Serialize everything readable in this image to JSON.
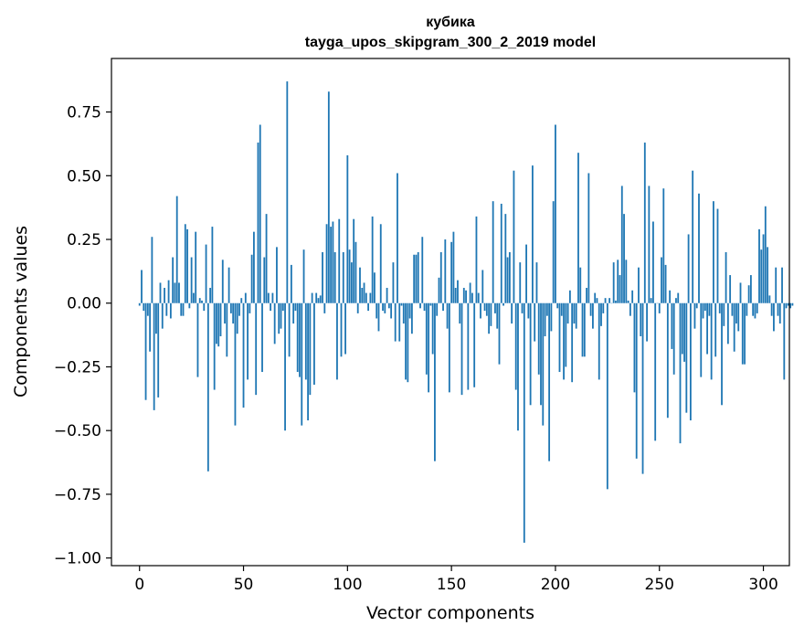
{
  "chart_data": {
    "type": "bar",
    "title_lines": [
      "кубика",
      "tayga_upos_skipgram_300_2_2019 model"
    ],
    "xlabel": "Vector components",
    "ylabel": "Components values",
    "xlim": [
      -13.5,
      312.5
    ],
    "ylim": [
      -1.03,
      0.96
    ],
    "x_ticks": [
      0,
      50,
      100,
      150,
      200,
      250,
      300
    ],
    "y_ticks": [
      -1.0,
      -0.75,
      -0.5,
      -0.25,
      0.0,
      0.25,
      0.5,
      0.75
    ],
    "y_tick_labels": [
      "−1.00",
      "−0.75",
      "−0.50",
      "−0.25",
      "0.00",
      "0.25",
      "0.50",
      "0.75"
    ],
    "bar_color": "#1f77b4",
    "grid": false,
    "values": [
      -0.01,
      0.13,
      -0.03,
      -0.38,
      -0.05,
      -0.19,
      0.26,
      -0.42,
      -0.12,
      -0.37,
      0.08,
      -0.1,
      0.06,
      -0.05,
      0.09,
      -0.06,
      0.18,
      0.08,
      0.42,
      0.08,
      -0.05,
      -0.05,
      0.31,
      0.29,
      -0.02,
      0.18,
      0.04,
      0.28,
      -0.29,
      0.02,
      0.01,
      -0.03,
      0.23,
      -0.66,
      0.06,
      0.3,
      -0.34,
      -0.16,
      -0.17,
      -0.13,
      0.17,
      -0.08,
      -0.21,
      0.14,
      -0.04,
      -0.08,
      -0.48,
      -0.12,
      -0.05,
      0.02,
      -0.41,
      0.04,
      -0.3,
      -0.04,
      0.19,
      0.28,
      -0.36,
      0.63,
      0.7,
      -0.27,
      0.18,
      0.35,
      0.04,
      -0.03,
      0.04,
      -0.16,
      0.22,
      -0.12,
      -0.1,
      -0.03,
      -0.5,
      0.87,
      -0.21,
      0.15,
      -0.08,
      -0.03,
      -0.27,
      -0.29,
      -0.48,
      0.21,
      -0.3,
      -0.46,
      -0.36,
      0.04,
      -0.32,
      0.04,
      0.02,
      0.03,
      0.2,
      -0.04,
      0.31,
      0.83,
      0.3,
      0.32,
      0.2,
      -0.3,
      0.33,
      -0.21,
      0.2,
      -0.2,
      0.58,
      0.21,
      0.16,
      0.33,
      0.24,
      -0.04,
      0.14,
      0.06,
      0.08,
      0.04,
      -0.03,
      0.04,
      0.34,
      0.12,
      -0.06,
      -0.11,
      0.31,
      -0.03,
      -0.04,
      0.06,
      -0.02,
      -0.06,
      0.16,
      -0.15,
      0.51,
      -0.15,
      -0.01,
      -0.08,
      -0.3,
      -0.31,
      -0.06,
      -0.12,
      0.19,
      0.19,
      0.2,
      -0.02,
      0.26,
      -0.03,
      -0.28,
      -0.35,
      -0.01,
      -0.2,
      -0.62,
      -0.05,
      0.1,
      0.2,
      -0.03,
      0.25,
      -0.1,
      -0.35,
      0.24,
      0.28,
      0.06,
      0.09,
      -0.08,
      -0.36,
      0.06,
      0.05,
      -0.34,
      0.08,
      0.04,
      -0.33,
      0.34,
      0.04,
      -0.06,
      0.13,
      -0.03,
      -0.05,
      -0.12,
      -0.09,
      0.4,
      -0.04,
      -0.1,
      -0.24,
      0.39,
      -0.01,
      0.35,
      0.18,
      0.2,
      -0.08,
      0.52,
      -0.34,
      -0.5,
      0.16,
      -0.04,
      -0.94,
      0.23,
      -0.06,
      -0.4,
      0.54,
      -0.15,
      0.16,
      -0.28,
      -0.4,
      -0.48,
      -0.13,
      -0.05,
      -0.62,
      -0.11,
      0.4,
      0.7,
      -0.02,
      -0.27,
      -0.05,
      -0.3,
      -0.25,
      -0.08,
      0.05,
      -0.31,
      -0.08,
      -0.1,
      0.59,
      0.14,
      -0.21,
      -0.21,
      0.06,
      0.51,
      -0.05,
      -0.1,
      0.04,
      0.02,
      -0.3,
      -0.09,
      -0.04,
      0.02,
      -0.73,
      0.02,
      0.0,
      0.16,
      0.01,
      0.17,
      0.11,
      0.46,
      0.35,
      0.17,
      0.01,
      -0.05,
      0.05,
      -0.35,
      -0.61,
      0.14,
      -0.13,
      -0.67,
      0.63,
      -0.15,
      0.46,
      0.02,
      0.32,
      -0.54,
      0.0,
      -0.04,
      0.18,
      0.45,
      0.15,
      -0.45,
      0.05,
      -0.18,
      -0.28,
      0.02,
      0.04,
      -0.55,
      -0.2,
      -0.23,
      -0.43,
      0.27,
      -0.46,
      0.52,
      -0.1,
      -0.02,
      0.43,
      -0.29,
      -0.06,
      -0.03,
      -0.2,
      -0.05,
      -0.3,
      0.4,
      -0.21,
      0.37,
      -0.04,
      -0.4,
      -0.09,
      0.2,
      -0.16,
      0.11,
      -0.05,
      -0.19,
      -0.08,
      -0.11,
      0.08,
      -0.24,
      -0.24,
      -0.05,
      0.07,
      0.11,
      -0.05,
      -0.06,
      -0.04,
      0.29,
      0.21,
      0.27,
      0.38,
      0.22,
      0.03,
      -0.05,
      -0.11,
      0.14,
      -0.05,
      -0.08,
      0.14,
      -0.3,
      -0.02,
      -0.01,
      -0.02,
      -0.01
    ]
  }
}
